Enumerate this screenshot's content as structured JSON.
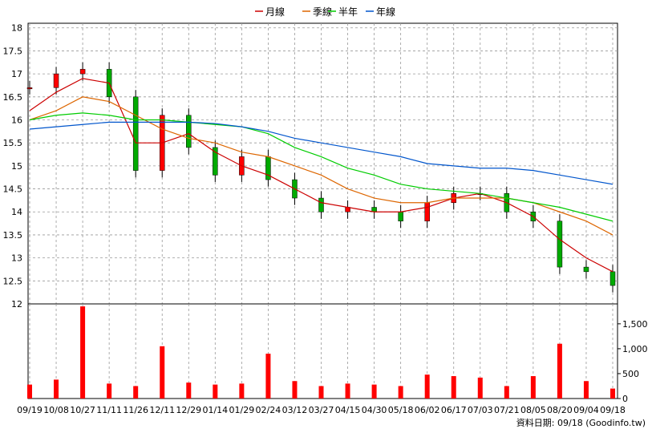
{
  "chart_data": [
    {
      "type": "line",
      "panel": "price",
      "legend": [
        {
          "name": "月線",
          "color": "#cc0000"
        },
        {
          "name": "季線",
          "color": "#dd6600"
        },
        {
          "name": "半年",
          "color": "#00cc00"
        },
        {
          "name": "年線",
          "color": "#0055cc"
        }
      ],
      "legend_position": "top-center",
      "grid": true,
      "ylim": [
        12,
        18.1
      ],
      "yticks": [
        "12",
        "12.5",
        "13",
        "13.5",
        "14",
        "14.5",
        "15",
        "15.5",
        "16",
        "16.5",
        "17",
        "17.5",
        "18"
      ],
      "x": [
        "09/19",
        "10/08",
        "10/27",
        "11/11",
        "11/26",
        "12/11",
        "12/29",
        "01/14",
        "01/29",
        "02/24",
        "03/12",
        "03/27",
        "04/15",
        "04/30",
        "05/18",
        "06/02",
        "06/17",
        "07/03",
        "07/21",
        "08/05",
        "08/20",
        "09/04",
        "09/18"
      ],
      "close_approx": [
        16.7,
        17.0,
        17.1,
        16.5,
        14.9,
        16.1,
        15.4,
        14.8,
        15.2,
        14.7,
        14.3,
        14.0,
        14.1,
        14.0,
        13.8,
        14.2,
        14.4,
        14.4,
        14.0,
        13.8,
        12.8,
        12.7,
        12.4
      ],
      "series": [
        {
          "name": "月線",
          "values": [
            16.2,
            16.6,
            16.9,
            16.8,
            15.5,
            15.5,
            15.7,
            15.3,
            15.0,
            14.8,
            14.5,
            14.2,
            14.1,
            14.0,
            14.0,
            14.1,
            14.3,
            14.4,
            14.2,
            13.9,
            13.4,
            13.0,
            12.7
          ]
        },
        {
          "name": "季線",
          "values": [
            16.0,
            16.2,
            16.5,
            16.4,
            16.1,
            15.8,
            15.6,
            15.5,
            15.3,
            15.2,
            15.0,
            14.8,
            14.5,
            14.3,
            14.2,
            14.2,
            14.3,
            14.3,
            14.3,
            14.2,
            14.0,
            13.8,
            13.5
          ]
        },
        {
          "name": "半年",
          "values": [
            16.0,
            16.1,
            16.15,
            16.1,
            16.0,
            16.0,
            15.95,
            15.9,
            15.85,
            15.7,
            15.4,
            15.2,
            14.95,
            14.8,
            14.6,
            14.5,
            14.45,
            14.4,
            14.3,
            14.2,
            14.1,
            13.95,
            13.8
          ]
        },
        {
          "name": "年線",
          "values": [
            15.8,
            15.85,
            15.9,
            15.95,
            15.95,
            15.95,
            15.95,
            15.92,
            15.85,
            15.75,
            15.6,
            15.5,
            15.4,
            15.3,
            15.2,
            15.05,
            15.0,
            14.95,
            14.95,
            14.9,
            14.8,
            14.7,
            14.6
          ]
        }
      ]
    },
    {
      "type": "bar",
      "panel": "volume",
      "color": "#ff0000",
      "ylim": [
        0,
        1900
      ],
      "yticks": [
        "0",
        "500",
        "1,000",
        "1,500"
      ],
      "x": [
        "09/19",
        "10/08",
        "10/27",
        "11/11",
        "11/26",
        "12/11",
        "12/29",
        "01/14",
        "01/29",
        "02/24",
        "03/12",
        "03/27",
        "04/15",
        "04/30",
        "05/18",
        "06/02",
        "06/17",
        "07/03",
        "07/21",
        "08/05",
        "08/20",
        "09/04",
        "09/18"
      ],
      "values": [
        280,
        380,
        1850,
        300,
        250,
        1050,
        320,
        280,
        300,
        900,
        350,
        250,
        300,
        280,
        250,
        480,
        450,
        420,
        250,
        450,
        1100,
        350,
        200
      ]
    }
  ],
  "source_label": "資料日期: 09/18 (Goodinfo.tw)"
}
